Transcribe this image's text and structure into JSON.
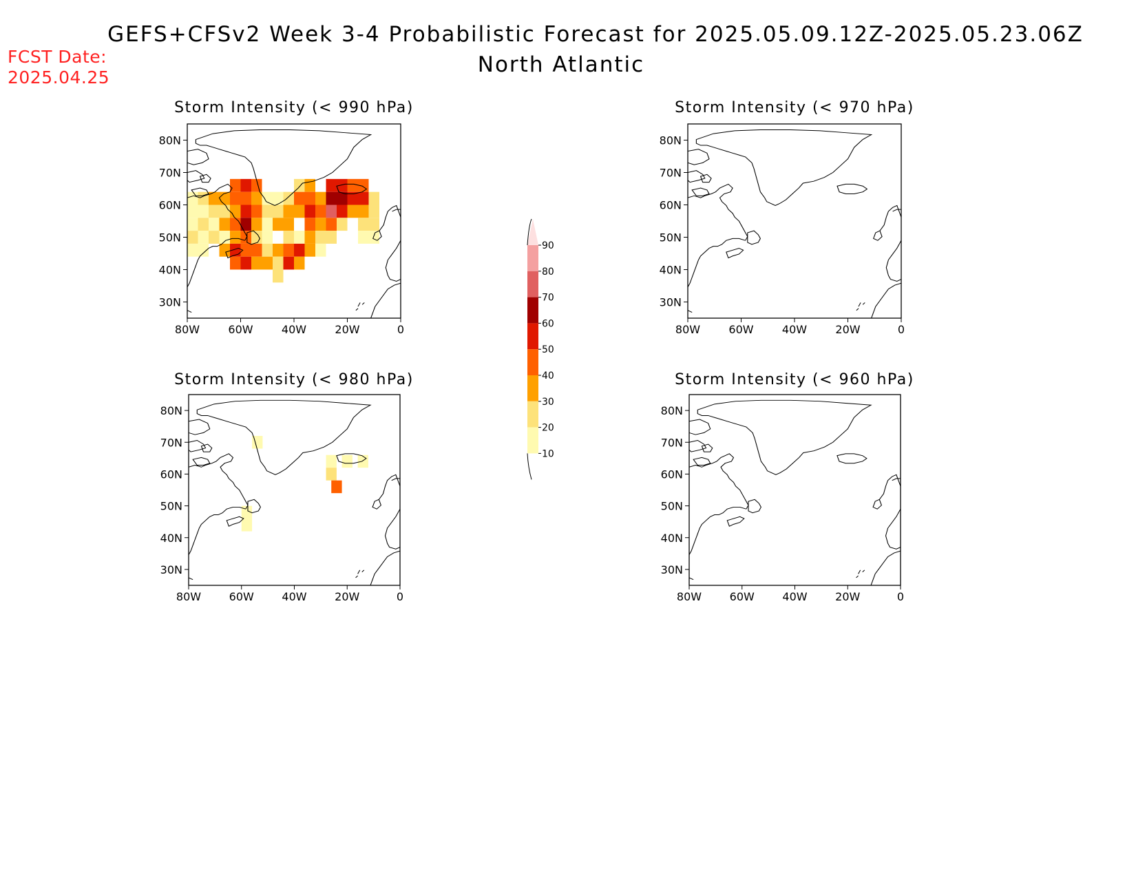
{
  "title": "GEFS+CFSv2 Week 3-4 Probabilistic Forecast for 2025.05.09.12Z-2025.05.23.06Z",
  "subtitle": "North Atlantic",
  "fcst_label": "FCST Date:",
  "fcst_date": "2025.04.25",
  "colors": {
    "fcst_text": "#ff2020",
    "levels": [
      "#fffab0",
      "#fde27a",
      "#ffa000",
      "#ff6000",
      "#e01800",
      "#a00000",
      "#e06060",
      "#f4a0a0",
      "#fde0e0"
    ]
  },
  "colorbar": {
    "ticks": [
      "10",
      "20",
      "30",
      "40",
      "50",
      "60",
      "70",
      "80",
      "90"
    ]
  },
  "panels": [
    {
      "id": "p990",
      "title": "Storm Intensity (< 990 hPa)",
      "lat_labels": [
        "80N",
        "70N",
        "60N",
        "50N",
        "40N",
        "30N"
      ],
      "lon_labels": [
        "80W",
        "60W",
        "40W",
        "20W",
        "0"
      ]
    },
    {
      "id": "p970",
      "title": "Storm Intensity (< 970 hPa)",
      "lat_labels": [
        "80N",
        "70N",
        "60N",
        "50N",
        "40N",
        "30N"
      ],
      "lon_labels": [
        "80W",
        "60W",
        "40W",
        "20W",
        "0"
      ]
    },
    {
      "id": "p980",
      "title": "Storm Intensity (< 980 hPa)",
      "lat_labels": [
        "80N",
        "70N",
        "60N",
        "50N",
        "40N",
        "30N"
      ],
      "lon_labels": [
        "80W",
        "60W",
        "40W",
        "20W",
        "0"
      ]
    },
    {
      "id": "p960",
      "title": "Storm Intensity (< 960 hPa)",
      "lat_labels": [
        "80N",
        "70N",
        "60N",
        "50N",
        "40N",
        "30N"
      ],
      "lon_labels": [
        "80W",
        "60W",
        "40W",
        "20W",
        "0"
      ]
    }
  ],
  "probability_cells": {
    "p990": [
      [
        -80,
        60,
        1
      ],
      [
        -80,
        56,
        1
      ],
      [
        -80,
        52,
        1
      ],
      [
        -80,
        48,
        2
      ],
      [
        -80,
        44,
        1
      ],
      [
        -76,
        60,
        2
      ],
      [
        -76,
        56,
        1
      ],
      [
        -76,
        52,
        2
      ],
      [
        -76,
        48,
        1
      ],
      [
        -76,
        44,
        1
      ],
      [
        -72,
        60,
        3
      ],
      [
        -72,
        56,
        2
      ],
      [
        -72,
        52,
        1
      ],
      [
        -72,
        48,
        2
      ],
      [
        -68,
        60,
        3
      ],
      [
        -68,
        56,
        2
      ],
      [
        -68,
        52,
        3
      ],
      [
        -68,
        48,
        1
      ],
      [
        -68,
        44,
        3
      ],
      [
        -64,
        64,
        4
      ],
      [
        -64,
        60,
        4
      ],
      [
        -64,
        56,
        3
      ],
      [
        -64,
        52,
        4
      ],
      [
        -64,
        48,
        3
      ],
      [
        -64,
        44,
        5
      ],
      [
        -64,
        40,
        4
      ],
      [
        -60,
        64,
        5
      ],
      [
        -60,
        60,
        4
      ],
      [
        -60,
        56,
        5
      ],
      [
        -60,
        52,
        6
      ],
      [
        -60,
        48,
        4
      ],
      [
        -60,
        44,
        4
      ],
      [
        -60,
        40,
        5
      ],
      [
        -56,
        64,
        4
      ],
      [
        -56,
        60,
        3
      ],
      [
        -56,
        56,
        4
      ],
      [
        -56,
        52,
        3
      ],
      [
        -56,
        48,
        2
      ],
      [
        -56,
        44,
        4
      ],
      [
        -56,
        40,
        3
      ],
      [
        -52,
        60,
        1
      ],
      [
        -52,
        56,
        2
      ],
      [
        -52,
        52,
        1
      ],
      [
        -52,
        48,
        1
      ],
      [
        -52,
        44,
        2
      ],
      [
        -52,
        40,
        3
      ],
      [
        -48,
        60,
        1
      ],
      [
        -48,
        56,
        2
      ],
      [
        -48,
        52,
        3
      ],
      [
        -48,
        44,
        3
      ],
      [
        -48,
        40,
        2
      ],
      [
        -48,
        36,
        2
      ],
      [
        -44,
        60,
        2
      ],
      [
        -44,
        56,
        3
      ],
      [
        -44,
        52,
        3
      ],
      [
        -44,
        48,
        2
      ],
      [
        -44,
        44,
        4
      ],
      [
        -44,
        40,
        5
      ],
      [
        -40,
        64,
        2
      ],
      [
        -40,
        60,
        4
      ],
      [
        -40,
        56,
        3
      ],
      [
        -40,
        48,
        1
      ],
      [
        -40,
        44,
        5
      ],
      [
        -40,
        40,
        3
      ],
      [
        -36,
        64,
        3
      ],
      [
        -36,
        60,
        4
      ],
      [
        -36,
        56,
        5
      ],
      [
        -36,
        52,
        4
      ],
      [
        -36,
        48,
        3
      ],
      [
        -36,
        44,
        3
      ],
      [
        -32,
        60,
        3
      ],
      [
        -32,
        56,
        4
      ],
      [
        -32,
        52,
        3
      ],
      [
        -32,
        48,
        2
      ],
      [
        -32,
        44,
        1
      ],
      [
        -28,
        64,
        5
      ],
      [
        -28,
        60,
        6
      ],
      [
        -28,
        56,
        7
      ],
      [
        -28,
        52,
        4
      ],
      [
        -28,
        48,
        2
      ],
      [
        -24,
        64,
        5
      ],
      [
        -24,
        60,
        6
      ],
      [
        -24,
        56,
        5
      ],
      [
        -24,
        52,
        2
      ],
      [
        -20,
        64,
        4
      ],
      [
        -20,
        60,
        5
      ],
      [
        -20,
        56,
        3
      ],
      [
        -16,
        64,
        4
      ],
      [
        -16,
        60,
        5
      ],
      [
        -16,
        56,
        3
      ],
      [
        -16,
        52,
        2
      ],
      [
        -16,
        48,
        1
      ],
      [
        -12,
        60,
        2
      ],
      [
        -12,
        56,
        2
      ],
      [
        -12,
        52,
        2
      ],
      [
        -12,
        48,
        1
      ]
    ],
    "p970": [],
    "p980": [
      [
        -56,
        68,
        1
      ],
      [
        -28,
        62,
        1
      ],
      [
        -28,
        58,
        2
      ],
      [
        -26,
        54,
        4
      ],
      [
        -22,
        62,
        1
      ],
      [
        -16,
        62,
        1
      ],
      [
        -60,
        46,
        1
      ],
      [
        -60,
        42,
        1
      ]
    ],
    "p960": []
  }
}
